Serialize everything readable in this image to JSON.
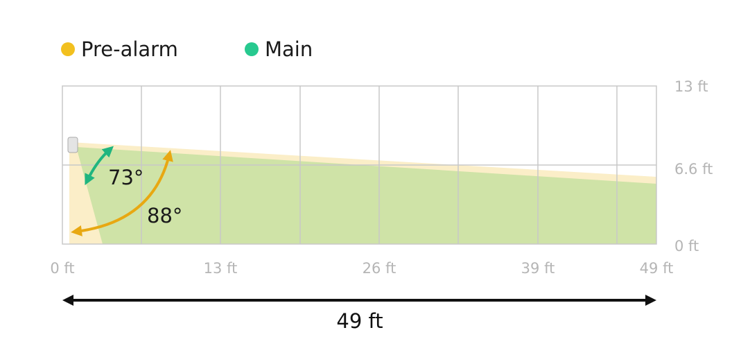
{
  "legend": [
    "Pre-alarm",
    "Main"
  ],
  "y_labels": [
    "13 ft",
    "6.6 ft",
    "0 ft"
  ],
  "x_labels": [
    "0 ft",
    "13 ft",
    "26 ft",
    "39 ft",
    "49 ft"
  ],
  "angles": {
    "main": "73°",
    "pre_alarm": "88°"
  },
  "distance": "49 ft"
}
